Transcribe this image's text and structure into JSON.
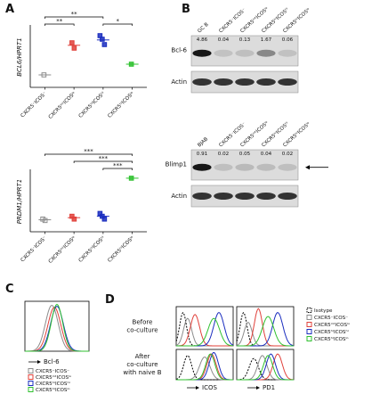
{
  "panels": {
    "A": {
      "label": "A",
      "charts": [
        {
          "type": "dot",
          "y_label": "BCL6/HPRT1",
          "ylim": [
            0,
            1.7
          ],
          "groups": [
            {
              "name": "CXCR5⁻ICOS⁻",
              "color": "#8c8c8c",
              "values": [
                0.35
              ],
              "mean": 0.35
            },
            {
              "name": "CXCR5ⁱⁿᵗICOSˡᵒ",
              "color": "#e0403a",
              "values": [
                1.25,
                1.1
              ],
              "mean": 1.18
            },
            {
              "name": "CXCR5ʰⁱICOSʰⁱ",
              "color": "#1a2dbf",
              "values": [
                1.45,
                1.35,
                1.2
              ],
              "mean": 1.33
            },
            {
              "name": "CXCR5ʰⁱICOSˡᵒ",
              "color": "#2fc12f",
              "values": [
                0.65
              ],
              "mean": 0.65
            }
          ],
          "significance": [
            {
              "from": 0,
              "to": 1,
              "label": "**"
            },
            {
              "from": 0,
              "to": 2,
              "label": "**"
            },
            {
              "from": 2,
              "to": 3,
              "label": "*"
            }
          ]
        },
        {
          "type": "dot",
          "y_label": "PRDM1/HPRT1",
          "ylim": [
            0,
            4.3
          ],
          "groups": [
            {
              "name": "CXCR5⁻ICOS⁻",
              "color": "#8c8c8c",
              "values": [
                0.9,
                0.8
              ],
              "mean": 0.85
            },
            {
              "name": "CXCR5ⁱⁿᵗICOSˡᵒ",
              "color": "#e0403a",
              "values": [
                1.1,
                0.9
              ],
              "mean": 1.0
            },
            {
              "name": "CXCR5ʰⁱICOSʰⁱ",
              "color": "#1a2dbf",
              "values": [
                1.3,
                1.1,
                0.9
              ],
              "mean": 1.1
            },
            {
              "name": "CXCR5ʰⁱICOSˡᵒ",
              "color": "#2fc12f",
              "values": [
                3.8
              ],
              "mean": 3.8
            }
          ],
          "significance": [
            {
              "from": 2,
              "to": 3,
              "label": "***"
            },
            {
              "from": 1,
              "to": 3,
              "label": "***"
            },
            {
              "from": 0,
              "to": 3,
              "label": "***"
            }
          ]
        }
      ]
    },
    "B": {
      "label": "B",
      "blots": [
        {
          "lanes": [
            "GC B",
            "CXCR5⁻ICOS⁻",
            "CXCR5ⁱⁿᵗICOSˡᵒ",
            "CXCR5ʰⁱICOSʰⁱ",
            "CXCR5ʰⁱICOSˡᵒ"
          ],
          "target": "Bcl-6",
          "loading": "Actin",
          "quantification": [
            4.86,
            0.04,
            0.13,
            1.67,
            0.06
          ],
          "arrow": false
        },
        {
          "lanes": [
            "BJAB",
            "CXCR5⁻ICOS⁻",
            "CXCR5ⁱⁿᵗICOSˡᵒ",
            "CXCR5ʰⁱICOSʰⁱ",
            "CXCR5ʰⁱICOSˡᵒ"
          ],
          "target": "Blimp1",
          "loading": "Actin",
          "quantification": [
            0.91,
            0.02,
            0.05,
            0.04,
            0.02
          ],
          "arrow": true
        }
      ]
    },
    "C": {
      "label": "C",
      "x_label": "Bcl-6",
      "legend": [
        {
          "name": "CXCR5⁻ICOS⁻",
          "color": "#8c8c8c"
        },
        {
          "name": "CXCR5ⁱⁿᵗICOSˡᵒ",
          "color": "#e0403a"
        },
        {
          "name": "CXCR5ʰⁱICOSʰⁱ",
          "color": "#1a2dbf"
        },
        {
          "name": "CXCR5ʰⁱICOSˡᵒ",
          "color": "#2fc12f"
        }
      ]
    },
    "D": {
      "label": "D",
      "rows": [
        [
          "Before",
          "co-culture"
        ],
        [
          "After",
          "co-culture",
          "with naive B"
        ]
      ],
      "x_labels": [
        "ICOS",
        "PD1"
      ],
      "legend": [
        {
          "name": "Isotype",
          "color": "#000000",
          "dashed": true
        },
        {
          "name": "CXCR5⁻ICOS⁻",
          "color": "#8c8c8c",
          "dashed": false
        },
        {
          "name": "CXCR5ⁱⁿᵗICOSˡᵒ",
          "color": "#e0403a",
          "dashed": false
        },
        {
          "name": "CXCR5ʰⁱICOSʰⁱ",
          "color": "#1a2dbf",
          "dashed": false
        },
        {
          "name": "CXCR5ʰⁱICOSˡᵒ",
          "color": "#2fc12f",
          "dashed": false
        }
      ]
    }
  }
}
